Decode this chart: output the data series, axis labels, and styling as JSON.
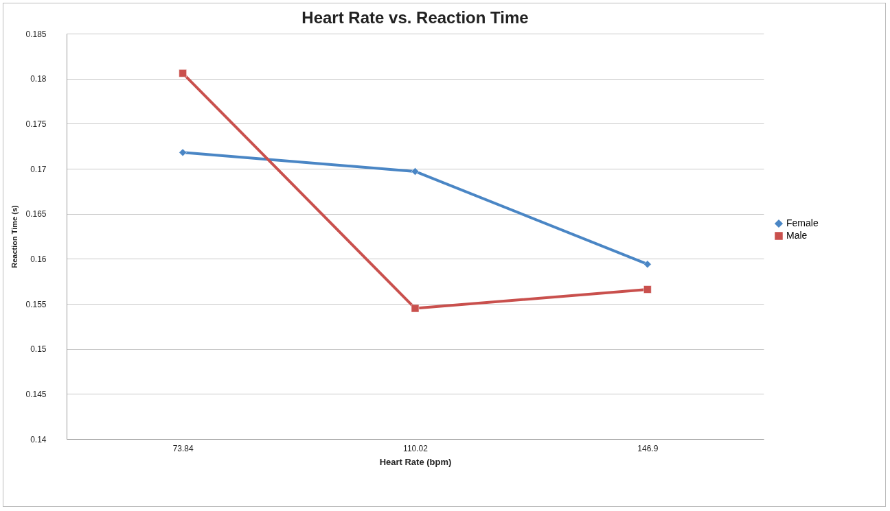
{
  "chart_data": {
    "type": "line",
    "title": "Heart Rate vs. Reaction Time",
    "xlabel": "Heart Rate (bpm)",
    "ylabel": "Reaction Time (s)",
    "categories": [
      "73.84",
      "110.02",
      "146.9"
    ],
    "series": [
      {
        "name": "Female",
        "color": "#4a86c5",
        "marker": "diamond",
        "values": [
          0.1718,
          0.1697,
          0.1594
        ]
      },
      {
        "name": "Male",
        "color": "#c9504d",
        "marker": "square",
        "values": [
          0.1806,
          0.1545,
          0.1566
        ]
      }
    ],
    "ylim": [
      0.14,
      0.185
    ],
    "yticks": [
      0.14,
      0.145,
      0.15,
      0.155,
      0.16,
      0.165,
      0.17,
      0.175,
      0.18,
      0.185
    ],
    "grid": "y",
    "legend": "right",
    "line_style": "solid"
  }
}
